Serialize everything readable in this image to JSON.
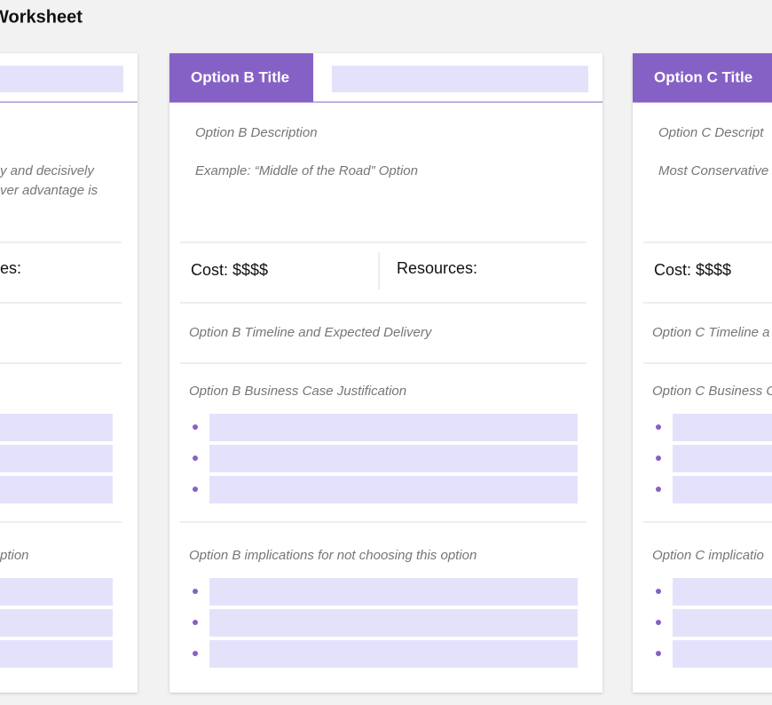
{
  "header": {
    "title": "Worksheet"
  },
  "cards": [
    {
      "example": [
        "y and decisively",
        "ver advantage is"
      ],
      "resources": "es:",
      "implications": "ption"
    },
    {
      "title": "Option B Title",
      "description": "Option B Description",
      "example": [
        "Example: “Middle of the Road” Option"
      ],
      "cost": "Cost: $$$$",
      "resources": "Resources:",
      "timeline": "Option B Timeline and Expected Delivery",
      "business_case": "Option B Business Case Justification",
      "implications": "Option B implications for not choosing this option"
    },
    {
      "title": "Option C Title",
      "description": "Option C Descript",
      "example": [
        "Most Conservative"
      ],
      "cost": "Cost: $$$$",
      "timeline": "Option C Timeline a",
      "business_case": "Option C Business C",
      "implications": "Option C implicatio"
    }
  ]
}
